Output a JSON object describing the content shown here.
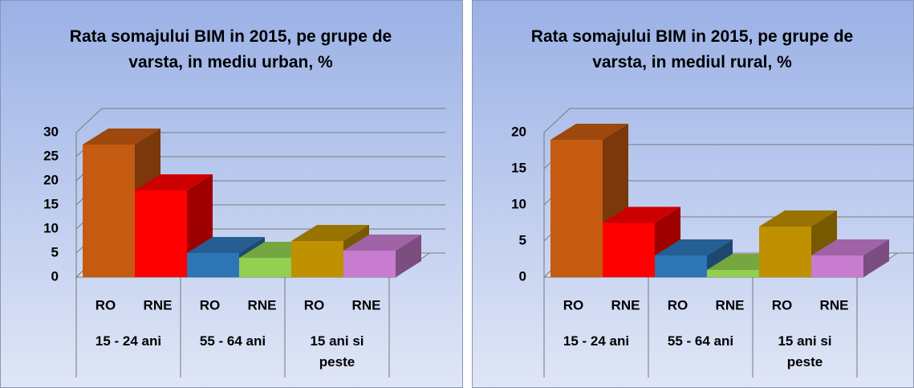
{
  "chart_data": [
    {
      "type": "bar",
      "title": "Rata somajului BIM in 2015,  pe grupe de varsta, in mediu urban, %",
      "categories": [
        "RO",
        "RNE",
        "RO",
        "RNE",
        "RO",
        "RNE"
      ],
      "groups": [
        "15 - 24 ani",
        "55 - 64 ani",
        "15 ani si peste"
      ],
      "values": [
        27.5,
        18,
        5,
        4,
        7.5,
        5.5
      ],
      "colors": [
        "#c55a11",
        "#ff0000",
        "#2e75b6",
        "#92d050",
        "#bf9000",
        "#c77ccf"
      ],
      "ylim": [
        0,
        30
      ],
      "yticks": [
        0,
        5,
        10,
        15,
        20,
        25,
        30
      ],
      "grid": true
    },
    {
      "type": "bar",
      "title": "Rata somajului BIM in 2015,  pe grupe de varsta, in mediul rural, %",
      "categories": [
        "RO",
        "RNE",
        "RO",
        "RNE",
        "RO",
        "RNE"
      ],
      "groups": [
        "15 - 24 ani",
        "55 - 64 ani",
        "15 ani si peste"
      ],
      "values": [
        19,
        7.5,
        3,
        1,
        7,
        3
      ],
      "colors": [
        "#c55a11",
        "#ff0000",
        "#2e75b6",
        "#92d050",
        "#bf9000",
        "#c77ccf"
      ],
      "ylim": [
        0,
        20
      ],
      "yticks": [
        0,
        5,
        10,
        15,
        20
      ],
      "grid": true
    }
  ]
}
